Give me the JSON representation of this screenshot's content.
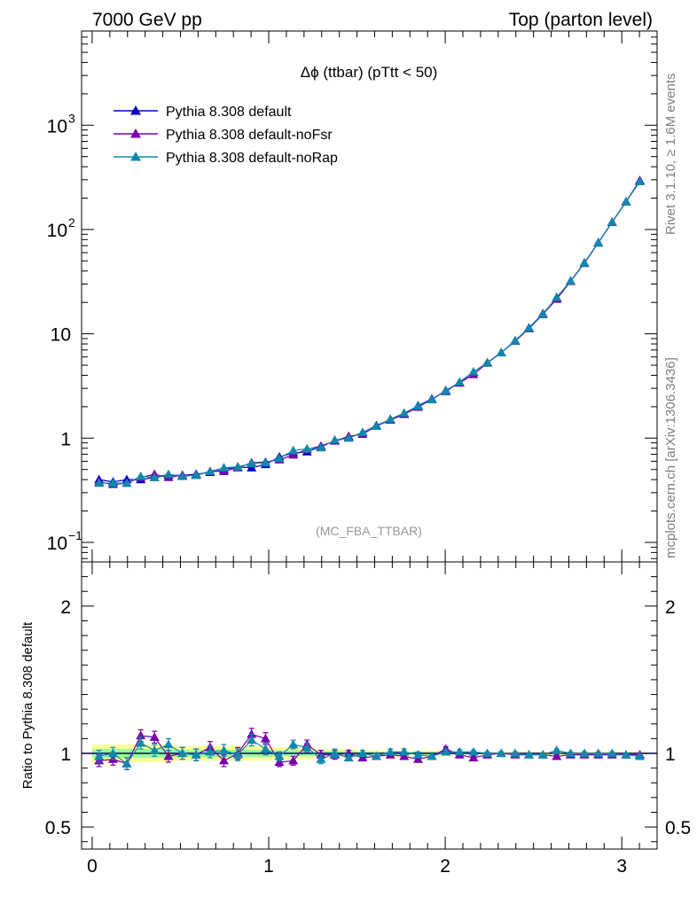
{
  "header": {
    "left": "7000 GeV pp",
    "right": "Top (parton level)"
  },
  "side": {
    "rivet": "Rivet 3.1.10, ≥ 1.6M events",
    "mcplots": "mcplots.cern.ch [arXiv:1306.3436]"
  },
  "plot_title": "Δϕ (ttbar) (pTtt < 50)",
  "analysis_id": "(MC_FBA_TTBAR)",
  "colors": {
    "default": "#0000cc",
    "noFsr": "#7700aa",
    "noRap": "#1188aa",
    "band_outer": "#ffff99",
    "band_inner": "#99ff99"
  },
  "legend": [
    {
      "label": "Pythia 8.308 default",
      "color": "#0000cc"
    },
    {
      "label": "Pythia 8.308 default-noFsr",
      "color": "#7700aa"
    },
    {
      "label": "Pythia 8.308 default-noRap",
      "color": "#1188aa"
    }
  ],
  "chart_data": [
    {
      "type": "line",
      "yscale": "log",
      "xlim": [
        -0.06,
        3.2
      ],
      "ylim": [
        0.065,
        8000
      ],
      "yticks": [
        {
          "v": 0.1,
          "label": "10",
          "exp": "−1"
        },
        {
          "v": 1,
          "label": "1",
          "exp": ""
        },
        {
          "v": 10,
          "label": "10",
          "exp": ""
        },
        {
          "v": 100,
          "label": "10",
          "exp": "2"
        },
        {
          "v": 1000,
          "label": "10",
          "exp": "3"
        }
      ],
      "x": [
        0.039,
        0.118,
        0.196,
        0.275,
        0.353,
        0.432,
        0.511,
        0.589,
        0.668,
        0.746,
        0.825,
        0.903,
        0.982,
        1.06,
        1.139,
        1.217,
        1.296,
        1.374,
        1.453,
        1.532,
        1.61,
        1.689,
        1.767,
        1.846,
        1.924,
        2.003,
        2.081,
        2.16,
        2.238,
        2.317,
        2.396,
        2.474,
        2.553,
        2.631,
        2.71,
        2.788,
        2.867,
        2.945,
        3.024,
        3.102
      ],
      "series": [
        {
          "name": "Pythia 8.308 default",
          "values": [
            0.4,
            0.38,
            0.4,
            0.4,
            0.42,
            0.44,
            0.44,
            0.45,
            0.47,
            0.5,
            0.53,
            0.52,
            0.56,
            0.66,
            0.72,
            0.74,
            0.83,
            0.94,
            1.01,
            1.13,
            1.32,
            1.51,
            1.72,
            2.05,
            2.38,
            2.8,
            3.42,
            4.3,
            5.3,
            6.6,
            8.6,
            11.4,
            15.6,
            22.0,
            32.0,
            48.0,
            75.0,
            118,
            185,
            295
          ]
        },
        {
          "name": "Pythia 8.308 default-noFsr",
          "values": [
            0.38,
            0.36,
            0.37,
            0.42,
            0.45,
            0.42,
            0.44,
            0.44,
            0.48,
            0.48,
            0.52,
            0.58,
            0.59,
            0.62,
            0.69,
            0.78,
            0.84,
            0.94,
            1.04,
            1.09,
            1.3,
            1.49,
            1.69,
            1.98,
            2.34,
            2.87,
            3.38,
            4.08,
            5.24,
            6.6,
            8.48,
            11.2,
            15.3,
            21.5,
            31.8,
            47.4,
            74.4,
            117,
            184,
            293
          ]
        },
        {
          "name": "Pythia 8.308 default-noRap",
          "values": [
            0.37,
            0.37,
            0.37,
            0.43,
            0.42,
            0.45,
            0.43,
            0.44,
            0.48,
            0.52,
            0.53,
            0.57,
            0.58,
            0.64,
            0.76,
            0.79,
            0.81,
            0.96,
            1.0,
            1.13,
            1.3,
            1.52,
            1.74,
            2.03,
            2.34,
            2.84,
            3.45,
            4.32,
            5.25,
            6.58,
            8.55,
            11.3,
            15.4,
            22.4,
            32.1,
            47.8,
            74.6,
            118,
            184,
            288
          ]
        }
      ]
    },
    {
      "type": "line",
      "ylabel": "Ratio to Pythia 8.308 default",
      "xlim": [
        -0.06,
        3.2
      ],
      "ylim": [
        0.35,
        2.3
      ],
      "xticks": [
        0,
        1,
        2,
        3
      ],
      "yticks": [
        0.5,
        1,
        2
      ],
      "reference": 1,
      "band_outer": [
        0.94,
        0.94,
        0.94,
        0.94,
        0.94,
        0.94,
        0.95,
        0.95,
        0.95,
        0.95,
        0.95,
        0.95,
        0.95,
        0.96,
        0.96,
        0.96,
        0.97,
        0.97,
        0.97,
        0.98,
        0.98,
        0.98,
        0.98,
        0.98,
        0.98,
        0.98,
        0.99,
        0.99,
        0.99,
        0.99,
        0.99,
        0.99,
        0.99,
        0.99,
        0.99,
        0.99,
        0.99,
        0.99,
        0.99,
        0.99
      ],
      "band_outer_hi": [
        1.06,
        1.06,
        1.06,
        1.06,
        1.06,
        1.06,
        1.05,
        1.05,
        1.05,
        1.05,
        1.05,
        1.05,
        1.05,
        1.04,
        1.04,
        1.04,
        1.03,
        1.03,
        1.03,
        1.02,
        1.02,
        1.02,
        1.02,
        1.02,
        1.02,
        1.02,
        1.01,
        1.01,
        1.01,
        1.01,
        1.01,
        1.01,
        1.01,
        1.01,
        1.01,
        1.01,
        1.01,
        1.01,
        1.01,
        1.01
      ],
      "band_inner": [
        0.97,
        0.97,
        0.97,
        0.97,
        0.97,
        0.97,
        0.975,
        0.975,
        0.975,
        0.975,
        0.975,
        0.975,
        0.975,
        0.98,
        0.98,
        0.98,
        0.985,
        0.985,
        0.985,
        0.99,
        0.99,
        0.99,
        0.99,
        0.99,
        0.99,
        0.99,
        0.995,
        0.995,
        0.995,
        0.995,
        0.995,
        0.995,
        0.995,
        0.995,
        0.995,
        0.995,
        0.995,
        0.995,
        0.995,
        0.995
      ],
      "band_inner_hi": [
        1.03,
        1.03,
        1.03,
        1.03,
        1.03,
        1.03,
        1.025,
        1.025,
        1.025,
        1.025,
        1.025,
        1.025,
        1.025,
        1.02,
        1.02,
        1.02,
        1.015,
        1.015,
        1.015,
        1.01,
        1.01,
        1.01,
        1.01,
        1.01,
        1.01,
        1.01,
        1.005,
        1.005,
        1.005,
        1.005,
        1.005,
        1.005,
        1.005,
        1.005,
        1.005,
        1.005,
        1.005,
        1.005,
        1.005,
        1.005
      ],
      "series": [
        {
          "name": "Pythia 8.308 default-noFsr",
          "values": [
            0.95,
            0.96,
            0.93,
            1.12,
            1.11,
            0.98,
            1.0,
            0.99,
            1.04,
            0.95,
            1.0,
            1.13,
            1.1,
            0.94,
            0.95,
            1.06,
            0.99,
            0.99,
            1.0,
            0.97,
            0.98,
            0.99,
            0.98,
            0.96,
            0.98,
            1.03,
            0.99,
            0.97,
            0.99,
            1.0,
            0.99,
            0.99,
            0.99,
            0.98,
            0.99,
            0.99,
            0.99,
            0.99,
            0.99,
            0.99
          ],
          "errors": [
            0.04,
            0.04,
            0.04,
            0.04,
            0.04,
            0.04,
            0.04,
            0.04,
            0.04,
            0.04,
            0.04,
            0.04,
            0.04,
            0.03,
            0.03,
            0.03,
            0.03,
            0.03,
            0.02,
            0.02,
            0.02,
            0.02,
            0.02,
            0.02,
            0.015,
            0.015,
            0.015,
            0.01,
            0.01,
            0.01,
            0.01,
            0.01,
            0.01,
            0.01,
            0.01,
            0.01,
            0.01,
            0.01,
            0.01,
            0.01
          ]
        },
        {
          "name": "Pythia 8.308 default-noRap",
          "values": [
            0.98,
            1.0,
            0.93,
            1.07,
            1.02,
            1.06,
            1.0,
            0.99,
            1.01,
            1.02,
            0.99,
            1.09,
            1.03,
            0.98,
            1.06,
            1.04,
            0.96,
            1.0,
            0.97,
            1.0,
            0.98,
            1.01,
            1.01,
            0.99,
            0.98,
            1.01,
            1.01,
            1.01,
            1.0,
            1.0,
            1.0,
            0.99,
            0.99,
            1.02,
            1.0,
            1.0,
            1.0,
            1.0,
            0.99,
            0.98
          ],
          "errors": [
            0.04,
            0.04,
            0.04,
            0.04,
            0.04,
            0.04,
            0.04,
            0.04,
            0.04,
            0.04,
            0.04,
            0.04,
            0.04,
            0.03,
            0.03,
            0.03,
            0.03,
            0.03,
            0.02,
            0.02,
            0.02,
            0.02,
            0.02,
            0.02,
            0.015,
            0.015,
            0.015,
            0.01,
            0.01,
            0.01,
            0.01,
            0.01,
            0.01,
            0.01,
            0.01,
            0.01,
            0.01,
            0.01,
            0.01,
            0.01
          ]
        }
      ]
    }
  ]
}
